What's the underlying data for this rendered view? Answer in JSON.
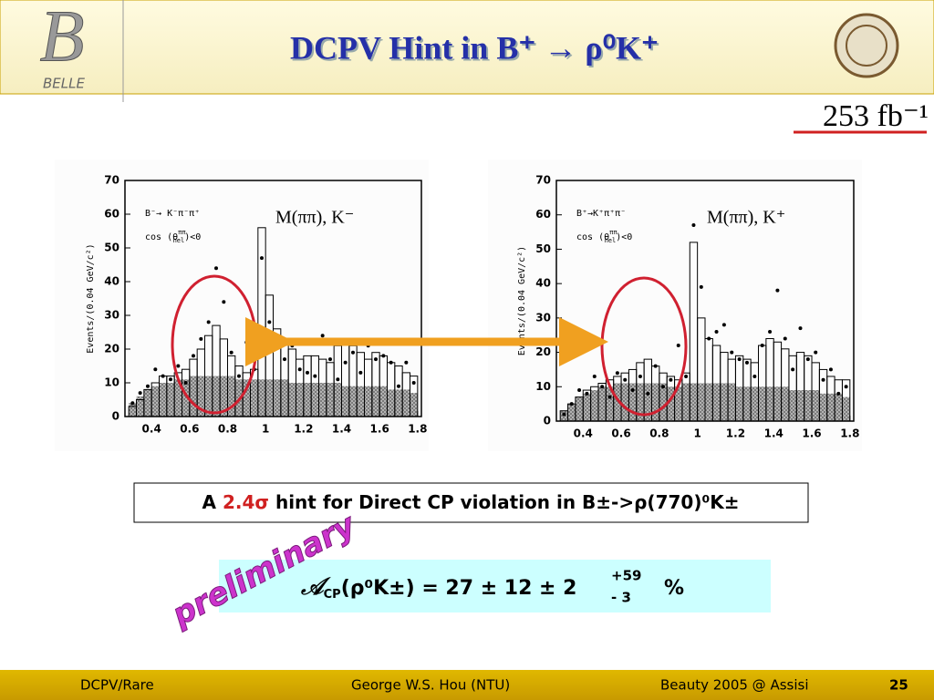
{
  "header": {
    "title": "DCPV Hint in B⁺ → ρ⁰K⁺",
    "logo_text": "BELLE",
    "luminosity": "253 fb⁻¹"
  },
  "chart_data": [
    {
      "type": "histogram",
      "title": "M(ππ), K⁻",
      "decay": "B⁻→ K⁻π⁻π⁺",
      "cut": [
        "cos (θ",
        "ππ",
        "hel",
        ")<0"
      ],
      "ylabel": "Events/(0.04 GeV/c²)",
      "bins": [
        0.28,
        0.32,
        0.36,
        0.4,
        0.44,
        0.48,
        0.52,
        0.56,
        0.6,
        0.64,
        0.68,
        0.72,
        0.76,
        0.8,
        0.84,
        0.88,
        0.92,
        0.96,
        1,
        1.04,
        1.08,
        1.12,
        1.16,
        1.2,
        1.24,
        1.28,
        1.32,
        1.36,
        1.4,
        1.44,
        1.48,
        1.52,
        1.56,
        1.6,
        1.64,
        1.68,
        1.72,
        1.76,
        1.8
      ],
      "values": [
        3,
        5,
        8,
        10,
        12,
        12,
        13,
        14,
        17,
        20,
        24,
        27,
        23,
        18,
        15,
        13,
        14,
        56,
        36,
        26,
        22,
        20,
        17,
        18,
        18,
        17,
        16,
        21,
        22,
        21,
        19,
        17,
        19,
        18,
        16,
        15,
        13,
        12
      ],
      "background_values": [
        4,
        6,
        8,
        9,
        10,
        10,
        11,
        11,
        12,
        12,
        12,
        12,
        12,
        12,
        11,
        11,
        11,
        11,
        11,
        11,
        11,
        10,
        10,
        10,
        10,
        10,
        10,
        10,
        9,
        9,
        9,
        9,
        9,
        9,
        8,
        8,
        8,
        7
      ],
      "points": [
        4,
        7,
        9,
        14,
        12,
        11,
        15,
        10,
        18,
        23,
        28,
        44,
        34,
        19,
        12,
        22,
        14,
        47,
        28,
        23,
        17,
        21,
        14,
        13,
        12,
        24,
        17,
        11,
        16,
        19,
        13,
        21,
        17,
        18,
        16,
        9,
        16,
        10
      ],
      "xlim": [
        0.26,
        1.82
      ],
      "ylim": [
        0,
        70
      ],
      "xticks": [
        0.4,
        0.6,
        0.8,
        1,
        1.2,
        1.4,
        1.6,
        1.8
      ],
      "yticks": [
        0,
        10,
        20,
        30,
        40,
        50,
        60,
        70
      ]
    },
    {
      "type": "histogram",
      "title": "M(ππ), K⁺",
      "decay": "B⁺→K⁺π⁺π⁻",
      "cut": [
        "cos (θ",
        "ππ",
        "hel",
        ")<0"
      ],
      "ylabel": "Events/(0.04 GeV/c²)",
      "bins": [
        0.28,
        0.32,
        0.36,
        0.4,
        0.44,
        0.48,
        0.52,
        0.56,
        0.6,
        0.64,
        0.68,
        0.72,
        0.76,
        0.8,
        0.84,
        0.88,
        0.92,
        0.96,
        1,
        1.04,
        1.08,
        1.12,
        1.16,
        1.2,
        1.24,
        1.28,
        1.32,
        1.36,
        1.4,
        1.44,
        1.48,
        1.52,
        1.56,
        1.6,
        1.64,
        1.68,
        1.72,
        1.76,
        1.8
      ],
      "values": [
        3,
        5,
        7,
        9,
        10,
        11,
        12,
        13,
        14,
        15,
        17,
        18,
        16,
        14,
        13,
        12,
        14,
        52,
        30,
        24,
        22,
        20,
        18,
        19,
        18,
        17,
        22,
        24,
        23,
        21,
        19,
        20,
        19,
        17,
        15,
        13,
        12,
        12
      ],
      "background_values": [
        3,
        5,
        7,
        8,
        9,
        10,
        10,
        11,
        11,
        11,
        11,
        11,
        11,
        11,
        10,
        10,
        11,
        11,
        11,
        11,
        11,
        11,
        11,
        10,
        10,
        10,
        10,
        10,
        10,
        10,
        9,
        9,
        9,
        9,
        8,
        8,
        8,
        7
      ],
      "points": [
        2,
        5,
        9,
        8,
        13,
        10,
        7,
        14,
        12,
        9,
        13,
        8,
        16,
        10,
        12,
        22,
        13,
        57,
        39,
        24,
        26,
        28,
        20,
        18,
        17,
        13,
        22,
        26,
        38,
        24,
        15,
        27,
        18,
        20,
        12,
        15,
        8,
        10
      ],
      "xlim": [
        0.26,
        1.82
      ],
      "ylim": [
        0,
        70
      ],
      "xticks": [
        0.4,
        0.6,
        0.8,
        1,
        1.2,
        1.4,
        1.6,
        1.8
      ],
      "yticks": [
        0,
        10,
        20,
        30,
        40,
        50,
        60,
        70
      ]
    }
  ],
  "hint_box": [
    "A ",
    "2.4σ",
    " hint for Direct CP violation in B±->ρ(770)⁰K±"
  ],
  "stamp": "preliminary",
  "result": {
    "symbol": "𝒜",
    "subscript": "CP",
    "main": "(ρ⁰K±) = 27 ± 12 ± 2",
    "upper": "+59",
    "lower": "- 3",
    "unit": "%"
  },
  "footer": {
    "left": "DCPV/Rare",
    "center": "George W.S. Hou (NTU)",
    "right": "Beauty 2005 @ Assisi",
    "page": "25"
  }
}
